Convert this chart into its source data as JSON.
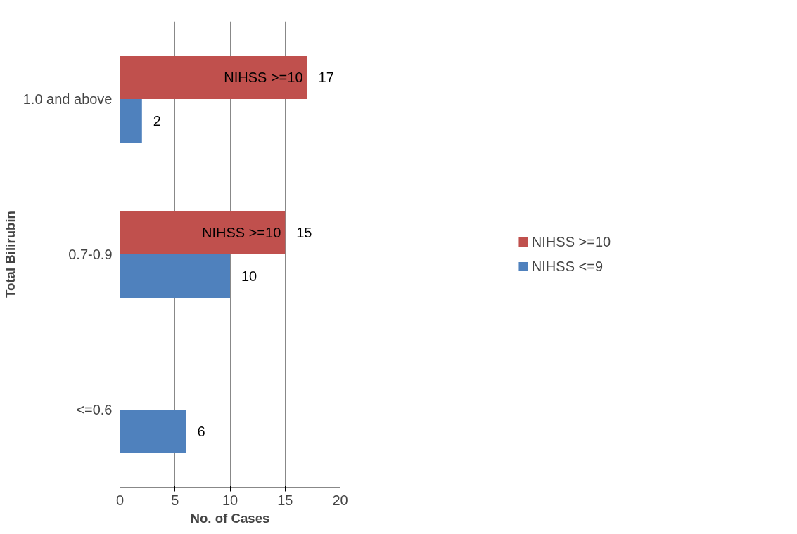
{
  "chart_data": {
    "type": "bar",
    "orientation": "horizontal",
    "xlabel": "No. of Cases",
    "ylabel": "Total Bilirubin",
    "categories": [
      "1.0 and above",
      "0.7-0.9",
      "<=0.6"
    ],
    "series": [
      {
        "name": "NIHSS >=10",
        "color": "#c0504d",
        "values": [
          17,
          15,
          null
        ]
      },
      {
        "name": "NIHSS <=9",
        "color": "#4f81bd",
        "values": [
          2,
          10,
          6
        ]
      }
    ],
    "xlim": [
      0,
      20
    ],
    "xticks": [
      0,
      5,
      10,
      15,
      20
    ],
    "grid": "x",
    "legend": "right",
    "data_labels": true,
    "annotations": [
      {
        "text": "NIHSS >=10",
        "x": 17,
        "y": "1.0 and above"
      },
      {
        "text": "NIHSS >=10",
        "x": 15,
        "y": "0.7-0.9"
      }
    ]
  }
}
